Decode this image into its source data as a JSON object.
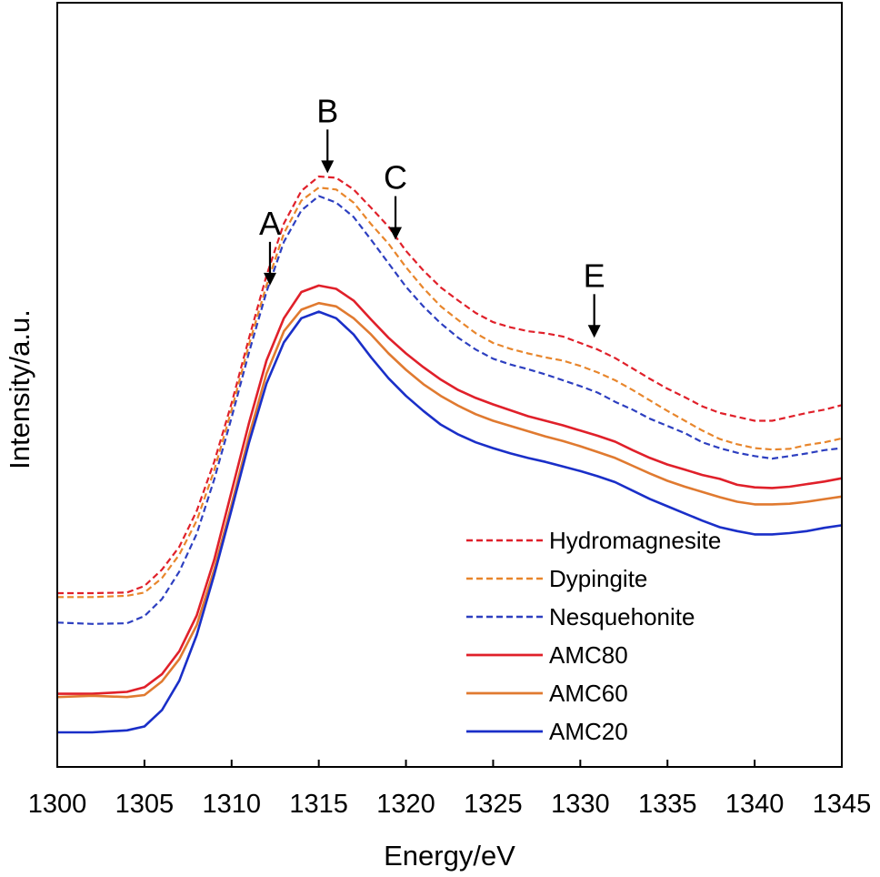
{
  "chart_data": {
    "type": "line",
    "title": "",
    "xlabel": "Energy/eV",
    "ylabel": "Intensity/a.u.",
    "xlim": [
      1300,
      1345
    ],
    "ylim": [
      0,
      100
    ],
    "y_tick_labels": false,
    "grid": false,
    "legend_position": "bottom-right",
    "x_ticks": [
      1300,
      1305,
      1310,
      1315,
      1320,
      1325,
      1330,
      1335,
      1340,
      1345
    ],
    "x": [
      1300,
      1302,
      1304,
      1305,
      1306,
      1307,
      1308,
      1309,
      1310,
      1311,
      1312,
      1313,
      1314,
      1315,
      1316,
      1317,
      1318,
      1319,
      1320,
      1321,
      1322,
      1323,
      1324,
      1325,
      1326,
      1327,
      1328,
      1329,
      1330,
      1331,
      1332,
      1333,
      1334,
      1335,
      1336,
      1337,
      1338,
      1339,
      1340,
      1341,
      1342,
      1343,
      1344,
      1345
    ],
    "series": [
      {
        "name": "Hydromagnesite",
        "style": "dashed",
        "color": "#e0202a",
        "values": [
          25.9,
          25.9,
          26.0,
          27.0,
          29.5,
          33.0,
          38.5,
          46.0,
          55.0,
          65.0,
          74.5,
          82.5,
          87.5,
          89.7,
          89.5,
          87.7,
          84.9,
          82.0,
          78.3,
          75.3,
          72.7,
          70.7,
          68.8,
          67.4,
          66.6,
          66.0,
          65.7,
          65.2,
          64.2,
          63.2,
          61.9,
          60.3,
          58.7,
          57.2,
          55.9,
          54.5,
          53.5,
          52.9,
          52.3,
          52.3,
          52.9,
          53.5,
          54.0,
          54.7
        ]
      },
      {
        "name": "Dypingite",
        "style": "dashed",
        "color": "#e8862c",
        "values": [
          25.3,
          25.3,
          25.5,
          26.0,
          28.2,
          31.8,
          37.0,
          44.7,
          54.0,
          64.0,
          73.0,
          81.0,
          86.0,
          88.0,
          87.7,
          85.7,
          82.4,
          79.4,
          75.8,
          72.6,
          69.8,
          67.7,
          65.7,
          64.2,
          63.3,
          62.6,
          62.0,
          61.5,
          60.7,
          59.7,
          58.5,
          57.0,
          55.4,
          53.8,
          52.3,
          50.8,
          49.5,
          48.7,
          48.1,
          47.9,
          48.0,
          48.6,
          49.0,
          49.6
        ]
      },
      {
        "name": "Nesquehonite",
        "style": "dashed",
        "color": "#2d3fc0",
        "values": [
          21.4,
          21.2,
          21.3,
          22.4,
          25.0,
          29.2,
          35.0,
          43.3,
          52.8,
          62.8,
          72.0,
          79.7,
          84.5,
          86.7,
          85.7,
          83.5,
          80.0,
          76.4,
          72.8,
          69.8,
          67.2,
          65.0,
          63.2,
          61.8,
          60.9,
          60.2,
          59.4,
          58.5,
          57.6,
          56.6,
          55.2,
          54.0,
          52.6,
          51.5,
          50.4,
          49.0,
          48.1,
          47.4,
          46.9,
          46.5,
          46.9,
          47.3,
          47.8,
          48.1
        ]
      },
      {
        "name": "AMC80",
        "style": "solid",
        "color": "#e0202a",
        "values": [
          10.5,
          10.5,
          10.8,
          11.5,
          13.5,
          17.0,
          22.5,
          31.0,
          41.5,
          52.0,
          61.5,
          68.0,
          72.0,
          73.0,
          72.5,
          70.7,
          67.8,
          65.0,
          62.6,
          60.5,
          58.6,
          57.0,
          55.8,
          54.8,
          53.9,
          53.0,
          52.3,
          51.6,
          50.8,
          50.0,
          49.1,
          47.8,
          46.6,
          45.6,
          44.8,
          44.0,
          43.4,
          42.5,
          42.1,
          42.0,
          42.2,
          42.6,
          43.0,
          43.5
        ]
      },
      {
        "name": "AMC60",
        "style": "solid",
        "color": "#e07a30",
        "values": [
          10.0,
          10.2,
          10.0,
          10.3,
          12.4,
          15.8,
          21.0,
          29.5,
          39.5,
          50.0,
          59.5,
          66.0,
          69.3,
          70.3,
          69.8,
          68.0,
          65.5,
          62.6,
          60.1,
          57.9,
          56.1,
          54.6,
          53.3,
          52.3,
          51.5,
          50.7,
          49.9,
          49.2,
          48.4,
          47.5,
          46.6,
          45.4,
          44.2,
          43.1,
          42.2,
          41.4,
          40.6,
          39.9,
          39.5,
          39.5,
          39.6,
          39.9,
          40.3,
          40.7
        ]
      },
      {
        "name": "AMC20",
        "style": "solid",
        "color": "#1a2fc8",
        "values": [
          4.6,
          4.6,
          4.9,
          5.5,
          8.0,
          12.5,
          19.5,
          28.7,
          38.7,
          49.0,
          58.0,
          64.3,
          68.0,
          69.0,
          68.0,
          65.5,
          62.0,
          58.8,
          56.1,
          53.8,
          51.7,
          50.2,
          49.0,
          48.1,
          47.3,
          46.6,
          46.0,
          45.3,
          44.6,
          43.8,
          42.9,
          41.6,
          40.3,
          39.2,
          38.1,
          37.0,
          36.0,
          35.4,
          34.9,
          34.9,
          35.1,
          35.4,
          35.9,
          36.3
        ]
      }
    ],
    "annotations": [
      {
        "label": "A",
        "x": 1312.2,
        "y": 73.0
      },
      {
        "label": "B",
        "x": 1315.5,
        "y": 90.2
      },
      {
        "label": "C",
        "x": 1319.4,
        "y": 80.0
      },
      {
        "label": "E",
        "x": 1330.8,
        "y": 65.0
      }
    ]
  }
}
